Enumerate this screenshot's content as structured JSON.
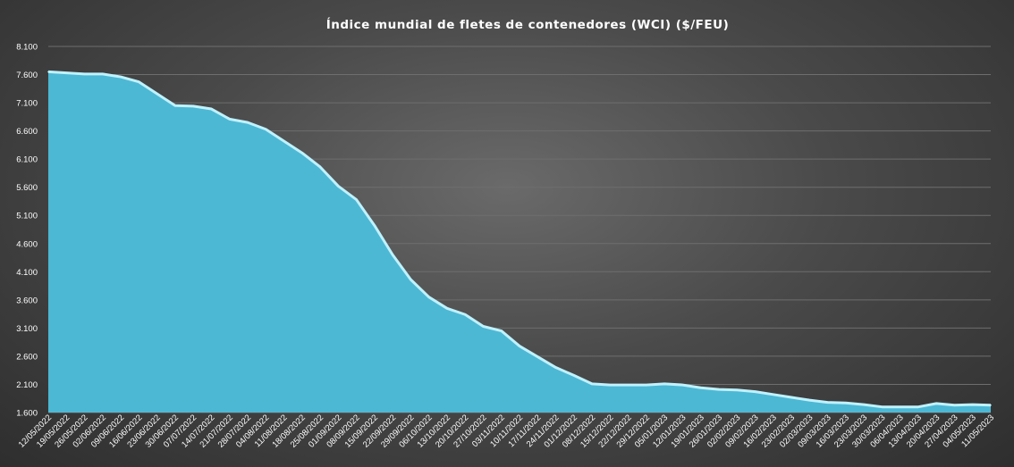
{
  "chart_data": {
    "type": "area",
    "title": "Índice mundial de fletes de contenedores (WCI) ($/FEU)",
    "xlabel": "",
    "ylabel": "",
    "ylim": [
      1600,
      8100
    ],
    "yticks": [
      1600,
      2100,
      2600,
      3100,
      3600,
      4100,
      4600,
      5100,
      5600,
      6100,
      6600,
      7100,
      7600,
      8100
    ],
    "ytick_labels": [
      "1.600",
      "2.100",
      "2.600",
      "3.100",
      "3.600",
      "4.100",
      "4.600",
      "5.100",
      "5.600",
      "6.100",
      "6.600",
      "7.100",
      "7.600",
      "8.100"
    ],
    "grid": true,
    "fill_color": "#4db8d4",
    "line_color": "#bff2ff",
    "categories": [
      "12/05/2022",
      "19/05/2022",
      "26/05/2022",
      "02/06/2022",
      "09/06/2022",
      "16/06/2022",
      "23/06/2022",
      "30/06/2022",
      "07/07/2022",
      "14/07/2022",
      "21/07/2022",
      "28/07/2022",
      "04/08/2022",
      "11/08/2022",
      "18/08/2022",
      "25/08/2022",
      "01/09/2022",
      "08/09/2022",
      "15/09/2022",
      "22/09/2022",
      "29/09/2022",
      "06/10/2022",
      "13/10/2022",
      "20/10/2022",
      "27/10/2022",
      "03/11/2022",
      "10/11/2022",
      "17/11/2022",
      "24/11/2022",
      "01/12/2022",
      "08/12/2022",
      "15/12/2022",
      "22/12/2022",
      "29/12/2022",
      "05/01/2023",
      "12/01/2023",
      "19/01/2023",
      "26/01/2023",
      "02/02/2023",
      "09/02/2023",
      "16/02/2023",
      "23/02/2023",
      "02/03/2023",
      "09/03/2023",
      "16/03/2023",
      "23/03/2023",
      "30/03/2023",
      "06/04/2023",
      "13/04/2023",
      "20/04/2023",
      "27/04/2023",
      "04/05/2023",
      "11/05/2023"
    ],
    "values": [
      7650,
      7630,
      7610,
      7610,
      7560,
      7470,
      7260,
      7050,
      7040,
      6990,
      6810,
      6750,
      6630,
      6420,
      6210,
      5960,
      5620,
      5380,
      4920,
      4400,
      3960,
      3650,
      3450,
      3340,
      3130,
      3050,
      2780,
      2590,
      2400,
      2260,
      2110,
      2090,
      2090,
      2090,
      2110,
      2090,
      2040,
      2010,
      2000,
      1970,
      1920,
      1870,
      1820,
      1780,
      1770,
      1740,
      1700,
      1700,
      1700,
      1760,
      1730,
      1740,
      1730
    ]
  }
}
